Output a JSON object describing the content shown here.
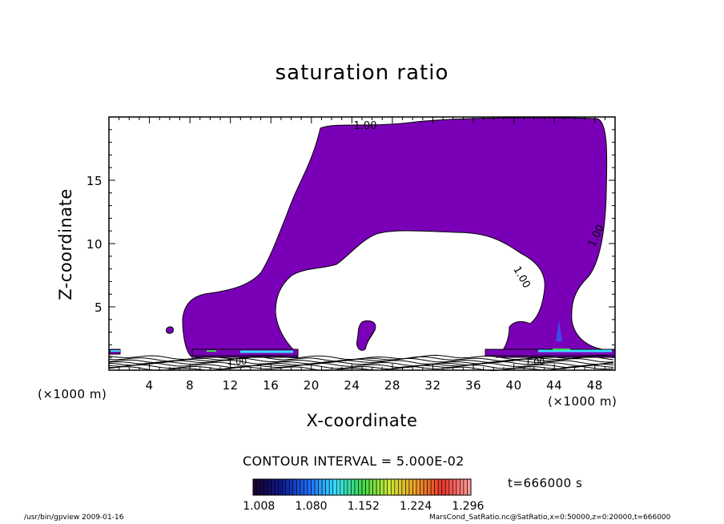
{
  "chart_data": {
    "type": "contour",
    "title": "saturation ratio",
    "xlabel": "X-coordinate",
    "ylabel": "Z-coordinate",
    "x_unit": "(×1000 m)",
    "x_unit_right": "(×1000 m)",
    "xlim": [
      0,
      50
    ],
    "ylim": [
      0,
      20
    ],
    "x_ticks": [
      4,
      8,
      12,
      16,
      20,
      24,
      28,
      32,
      36,
      40,
      44,
      48
    ],
    "x_tick_labels": [
      "4",
      "8",
      "12",
      "16",
      "20",
      "24",
      "28",
      "32",
      "36",
      "40",
      "44",
      "48"
    ],
    "y_ticks": [
      5,
      10,
      15
    ],
    "y_tick_labels": [
      "5",
      "10",
      "15"
    ],
    "contour_interval": "CONTOUR INTERVAL = 5.000E-02",
    "contour_labels": [
      "1.00",
      "1.00",
      "1.00",
      "1.00",
      "1.00"
    ],
    "colorbar": {
      "labels": [
        "1.008",
        "1.080",
        "1.152",
        "1.224",
        "1.296"
      ],
      "min": 1.0,
      "max": 1.3,
      "colors": [
        "#1a0030",
        "#0a1a8c",
        "#1f6bff",
        "#36e0ff",
        "#3cd94b",
        "#c9e836",
        "#f0a02a",
        "#e8332a",
        "#ff9b9b"
      ]
    },
    "fill_color": "#7a00b8",
    "time_label": "t=666000 s"
  },
  "footer": {
    "left": "/usr/bin/gpview   2009-01-16",
    "right": "MarsCond_SatRatio.nc@SatRatio,x=0:50000,z=0:20000,t=666000"
  }
}
